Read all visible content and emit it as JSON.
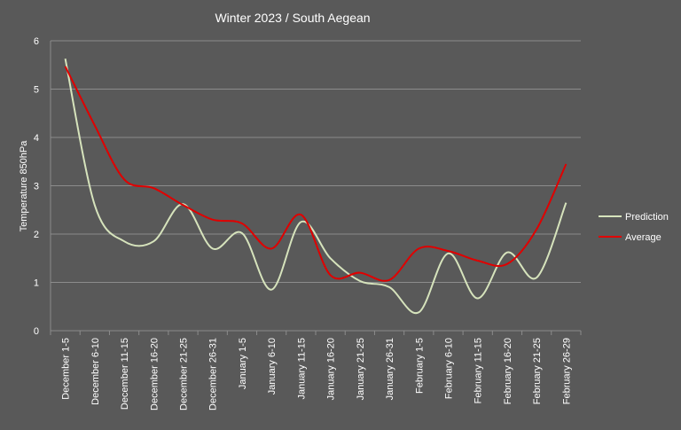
{
  "chart_data": {
    "type": "line",
    "title": "Winter 2023 /  South  Aegean",
    "ylabel": "Temperature  850hPa",
    "xlabel": "",
    "ylim": [
      0,
      6
    ],
    "yticks": [
      0,
      1,
      2,
      3,
      4,
      5,
      6
    ],
    "grid": true,
    "legend": "right",
    "categories": [
      "December 1-5",
      "December 6-10",
      "December 11-15",
      "December 16-20",
      "December 21-25",
      "December 26-31",
      "January 1-5",
      "January 6-10",
      "January 11-15",
      "January 16-20",
      "January 21-25",
      "January 26-31",
      "February 1-5",
      "February 6-10",
      "February 11-15",
      "February 16-20",
      "February 21-25",
      "February 26-29"
    ],
    "series": [
      {
        "name": "Prediction",
        "color": "#d6e3bc",
        "values": [
          5.63,
          2.6,
          1.85,
          1.85,
          2.62,
          1.7,
          2.02,
          0.85,
          2.25,
          1.5,
          1.03,
          0.9,
          0.38,
          1.6,
          0.67,
          1.62,
          1.1,
          2.65
        ]
      },
      {
        "name": "Average",
        "color": "#e00000",
        "values": [
          5.47,
          4.25,
          3.13,
          2.95,
          2.6,
          2.3,
          2.22,
          1.7,
          2.4,
          1.15,
          1.2,
          1.05,
          1.7,
          1.65,
          1.45,
          1.38,
          2.1,
          3.45
        ]
      }
    ]
  }
}
